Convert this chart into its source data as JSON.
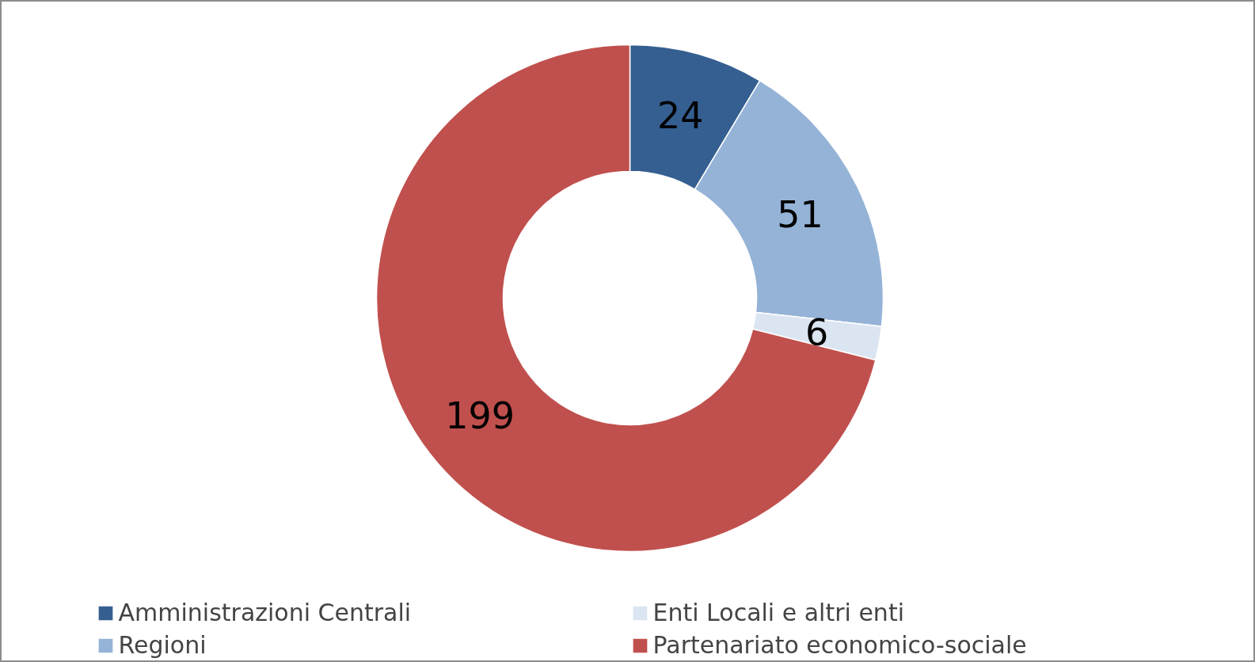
{
  "chart_data": {
    "type": "donut",
    "categories": [
      "Amministrazioni Centrali",
      "Regioni",
      "Enti Locali e altri enti",
      "Partenariato economico-sociale"
    ],
    "values": [
      24,
      51,
      6,
      199
    ],
    "colors": [
      "#365f91",
      "#95b3d7",
      "#dbe5f1",
      "#c0504d"
    ],
    "data_labels": true,
    "legend": "bottom"
  }
}
